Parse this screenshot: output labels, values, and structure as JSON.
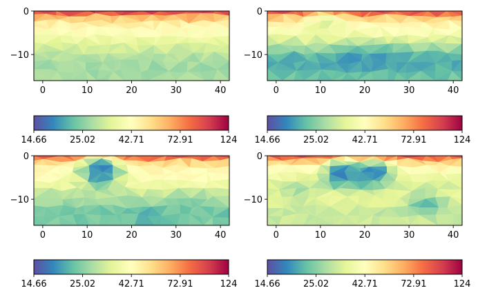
{
  "chart_data": [
    {
      "type": "heatmap",
      "panel": "top-left",
      "xlim": [
        -2,
        42
      ],
      "ylim": [
        -16,
        0
      ],
      "x_ticks": [
        "0",
        "10",
        "20",
        "30",
        "40"
      ],
      "y_ticks": [
        "0",
        "−10"
      ],
      "depth_profile": [
        {
          "depth": 0,
          "value": 110
        },
        {
          "depth": -1.5,
          "value": 60
        },
        {
          "depth": -3,
          "value": 47
        },
        {
          "depth": -5,
          "value": 42
        },
        {
          "depth": -7,
          "value": 36
        },
        {
          "depth": -9,
          "value": 31
        },
        {
          "depth": -11,
          "value": 28
        },
        {
          "depth": -13,
          "value": 27
        },
        {
          "depth": -16,
          "value": 28
        }
      ],
      "anomalies": []
    },
    {
      "type": "heatmap",
      "panel": "top-right",
      "xlim": [
        -2,
        42
      ],
      "ylim": [
        -16,
        0
      ],
      "x_ticks": [
        "0",
        "10",
        "20",
        "30",
        "40"
      ],
      "y_ticks": [
        "0",
        "−10"
      ],
      "depth_profile": [
        {
          "depth": 0,
          "value": 105
        },
        {
          "depth": -1.5,
          "value": 58
        },
        {
          "depth": -3,
          "value": 46
        },
        {
          "depth": -5,
          "value": 40
        },
        {
          "depth": -7,
          "value": 32
        },
        {
          "depth": -9,
          "value": 26
        },
        {
          "depth": -11,
          "value": 21
        },
        {
          "depth": -13,
          "value": 21
        },
        {
          "depth": -16,
          "value": 24
        }
      ],
      "anomalies": [
        {
          "x": 11,
          "depth": -3,
          "value": 34
        },
        {
          "x": 17,
          "depth": -11,
          "value": 19
        },
        {
          "x": 25,
          "depth": -11,
          "value": 20
        }
      ]
    },
    {
      "type": "heatmap",
      "panel": "bottom-left",
      "xlim": [
        -2,
        42
      ],
      "ylim": [
        -16,
        0
      ],
      "x_ticks": [
        "0",
        "10",
        "20",
        "30",
        "40"
      ],
      "y_ticks": [
        "0",
        "−10"
      ],
      "depth_profile": [
        {
          "depth": 0,
          "value": 100
        },
        {
          "depth": -1.5,
          "value": 55
        },
        {
          "depth": -3,
          "value": 45
        },
        {
          "depth": -5,
          "value": 42
        },
        {
          "depth": -7,
          "value": 37
        },
        {
          "depth": -9,
          "value": 30
        },
        {
          "depth": -11,
          "value": 27
        },
        {
          "depth": -13,
          "value": 23
        },
        {
          "depth": -16,
          "value": 25
        }
      ],
      "anomalies": [
        {
          "x": 13,
          "depth": -3,
          "value": 16
        },
        {
          "x": 13,
          "depth": -5,
          "value": 20
        },
        {
          "x": 25,
          "depth": -14,
          "value": 21
        },
        {
          "x": 33,
          "depth": -12,
          "value": 24
        }
      ]
    },
    {
      "type": "heatmap",
      "panel": "bottom-right",
      "xlim": [
        -2,
        42
      ],
      "ylim": [
        -16,
        0
      ],
      "x_ticks": [
        "0",
        "10",
        "20",
        "30",
        "40"
      ],
      "y_ticks": [
        "0",
        "−10"
      ],
      "depth_profile": [
        {
          "depth": 0,
          "value": 100
        },
        {
          "depth": -1.5,
          "value": 55
        },
        {
          "depth": -3,
          "value": 44
        },
        {
          "depth": -5,
          "value": 38
        },
        {
          "depth": -7,
          "value": 33
        },
        {
          "depth": -9,
          "value": 36
        },
        {
          "depth": -11,
          "value": 34
        },
        {
          "depth": -13,
          "value": 30
        },
        {
          "depth": -16,
          "value": 32
        }
      ],
      "anomalies": [
        {
          "x": 15,
          "depth": -4,
          "value": 15
        },
        {
          "x": 22,
          "depth": -4,
          "value": 16
        },
        {
          "x": 18,
          "depth": -5,
          "value": 20
        },
        {
          "x": 34,
          "depth": -11,
          "value": 22
        },
        {
          "x": 5,
          "depth": -8,
          "value": 28
        }
      ]
    }
  ],
  "colorbar": {
    "colormap": "Spectral_r",
    "tick_labels": [
      "14.66",
      "25.02",
      "42.71",
      "72.91",
      "124"
    ],
    "tick_values": [
      14.66,
      25.02,
      42.71,
      72.91,
      124
    ],
    "scale": "log",
    "stops": [
      "#5e4fa2",
      "#3288bd",
      "#66c2a5",
      "#abdda4",
      "#e6f598",
      "#ffffbf",
      "#fee08b",
      "#fdae61",
      "#f46d43",
      "#d53e4f",
      "#9e0142"
    ]
  }
}
